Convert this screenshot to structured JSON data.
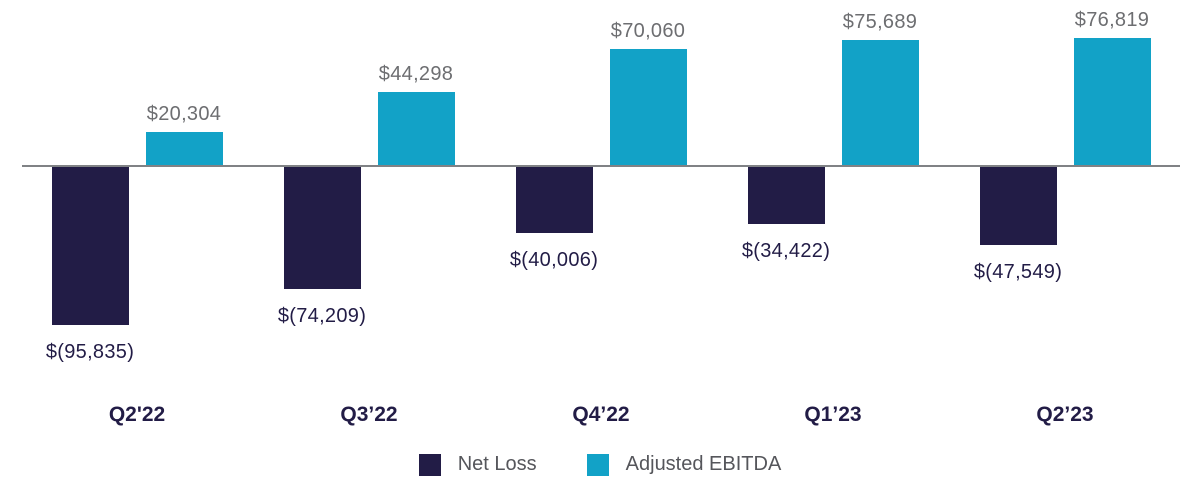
{
  "chart_data": {
    "type": "bar",
    "title": "",
    "xlabel": "",
    "ylabel": "",
    "categories": [
      "Q2'22",
      "Q3’22",
      "Q4’22",
      "Q1’23",
      "Q2’23"
    ],
    "series": [
      {
        "name": "Net Loss",
        "color": "#221C46",
        "values": [
          -95835,
          -74209,
          -40006,
          -34422,
          -47549
        ],
        "value_labels": [
          "$(95,835)",
          "$(74,209)",
          "$(40,006)",
          "$(34,422)",
          "$(47,549)"
        ],
        "value_label_color": "#221C46"
      },
      {
        "name": "Adjusted EBITDA",
        "color": "#12A2C7",
        "values": [
          20304,
          44298,
          70060,
          75689,
          76819
        ],
        "value_labels": [
          "$20,304",
          "$44,298",
          "$70,060",
          "$75,689",
          "$76,819"
        ],
        "value_label_color": "#6D6E71"
      }
    ],
    "ylim": [
      -100000,
      80000
    ],
    "grid": false,
    "axis_line_color": "#808285",
    "x_label_color": "#221C46",
    "legend_position": "bottom",
    "legend_text_color": "#55565B",
    "background_color": "#FFFFFF"
  }
}
